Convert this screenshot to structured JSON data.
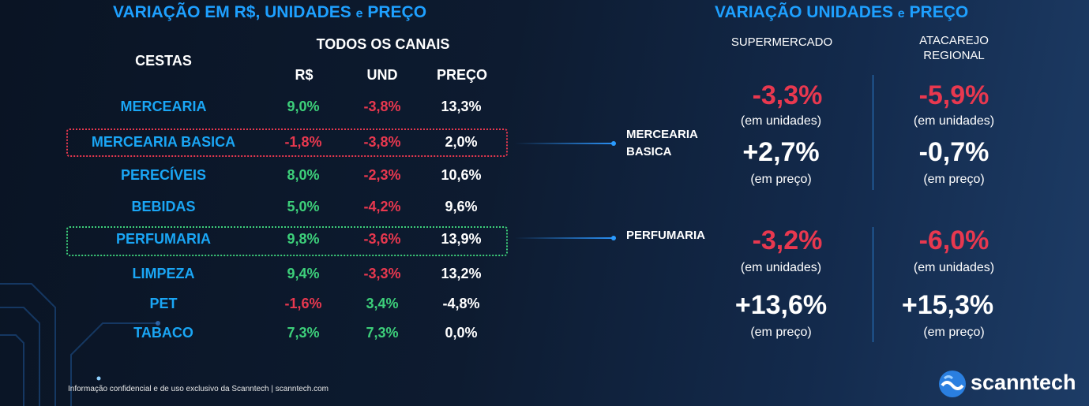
{
  "left": {
    "title_main": "VARIAÇÃO EM R$, UNIDADES ",
    "title_e": "e",
    "title_end": " PREÇO",
    "group_header": "TODOS OS CANAIS",
    "row_header": "CESTAS",
    "col_headers": [
      "R$",
      "UND",
      "PREÇO"
    ],
    "rows": [
      {
        "name": "MERCEARIA",
        "rs": "9,0%",
        "und": "-3,8%",
        "preco": "13,3%"
      },
      {
        "name": "MERCEARIA BASICA",
        "rs": "-1,8%",
        "und": "-3,8%",
        "preco": "2,0%"
      },
      {
        "name": "PERECÍVEIS",
        "rs": "8,0%",
        "und": "-2,3%",
        "preco": "10,6%"
      },
      {
        "name": "BEBIDAS",
        "rs": "5,0%",
        "und": "-4,2%",
        "preco": "9,6%"
      },
      {
        "name": "PERFUMARIA",
        "rs": "9,8%",
        "und": "-3,6%",
        "preco": "13,9%"
      },
      {
        "name": "LIMPEZA",
        "rs": "9,4%",
        "und": "-3,3%",
        "preco": "13,2%"
      },
      {
        "name": "PET",
        "rs": "-1,6%",
        "und": "3,4%",
        "preco": "-4,8%"
      },
      {
        "name": "TABACO",
        "rs": "7,3%",
        "und": "7,3%",
        "preco": "0,0%"
      }
    ]
  },
  "right": {
    "title_main": "VARIAÇÃO UNIDADES ",
    "title_e": "e",
    "title_end": " PREÇO",
    "col1_header": "SUPERMERCADO",
    "col2_header_line1": "ATACAREJO",
    "col2_header_line2": "REGIONAL",
    "unit_caption": "(em unidades)",
    "price_caption": "(em preço)",
    "groups": [
      {
        "label_line1": "MERCEARIA",
        "label_line2": "BASICA",
        "super_units": "-3,3%",
        "super_price": "+2,7%",
        "ataca_units": "-5,9%",
        "ataca_price": "-0,7%"
      },
      {
        "label_line1": "PERFUMARIA",
        "label_line2": "",
        "super_units": "-3,2%",
        "super_price": "+13,6%",
        "ataca_units": "-6,0%",
        "ataca_price": "+15,3%"
      }
    ]
  },
  "footer": "Informação confidencial e de uso exclusivo da Scanntech | scanntech.com",
  "logo": "scanntech",
  "colors": {
    "title": "#1ea0ff",
    "category": "#1aa6f5",
    "positive": "#3dcf7a",
    "negative": "#e8384f",
    "highlight_red": "#e8384f",
    "highlight_green": "#3dcf7a"
  }
}
